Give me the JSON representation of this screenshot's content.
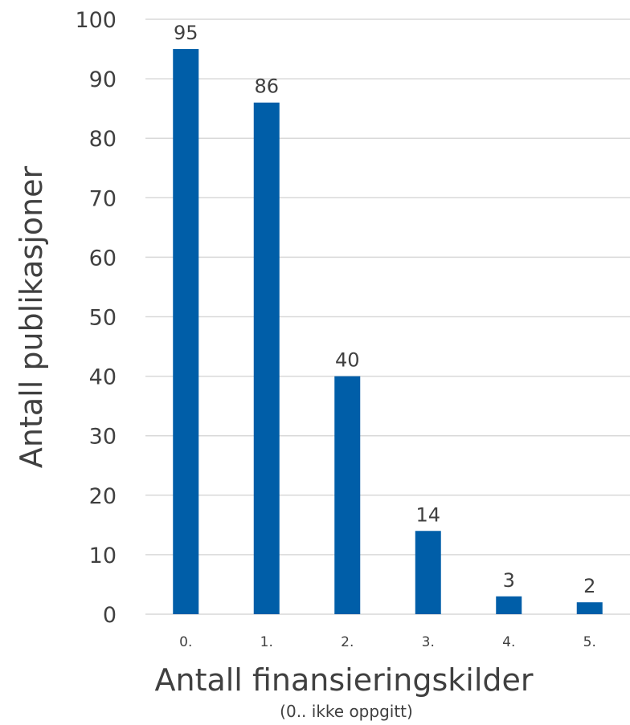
{
  "chart_data": {
    "type": "bar",
    "categories": [
      "0.",
      "1.",
      "2.",
      "3.",
      "4.",
      "5."
    ],
    "values": [
      95,
      86,
      40,
      14,
      3,
      2
    ],
    "xlabel": "Antall finansieringskilder",
    "xlabel_sub": "(0.. ikke oppgitt)",
    "ylabel": "Antall publikasjoner",
    "ylim": [
      0,
      100
    ],
    "yticks": [
      0,
      10,
      20,
      30,
      40,
      50,
      60,
      70,
      80,
      90,
      100
    ],
    "grid": true,
    "legend": "none",
    "data_labels": true,
    "bar_color": "#005EA8",
    "gridline_color": "#D9D9D9"
  }
}
